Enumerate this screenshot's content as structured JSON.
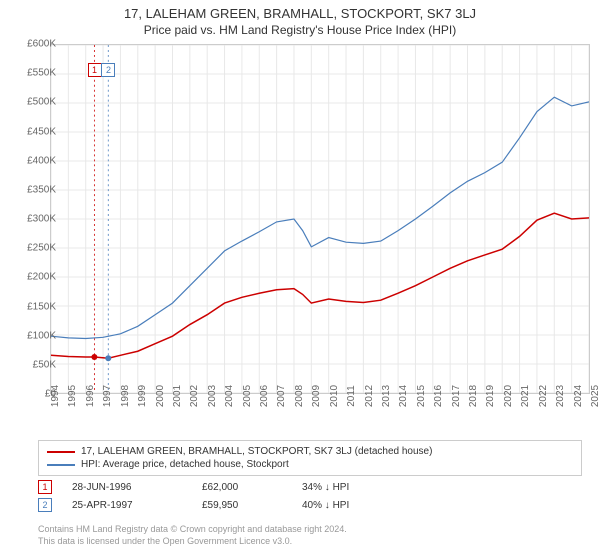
{
  "title": "17, LALEHAM GREEN, BRAMHALL, STOCKPORT, SK7 3LJ",
  "subtitle": "Price paid vs. HM Land Registry's House Price Index (HPI)",
  "chart": {
    "type": "line",
    "background_color": "#ffffff",
    "grid_color": "#e8e8e8",
    "border_color": "#cccccc",
    "x_start": 1994,
    "x_end": 2025,
    "x_ticks": [
      1994,
      1995,
      1996,
      1997,
      1998,
      1999,
      2000,
      2001,
      2002,
      2003,
      2004,
      2005,
      2006,
      2007,
      2008,
      2009,
      2010,
      2011,
      2012,
      2013,
      2014,
      2015,
      2016,
      2017,
      2018,
      2019,
      2020,
      2021,
      2022,
      2023,
      2024,
      2025
    ],
    "y_min": 0,
    "y_max": 600000,
    "y_tick_step": 50000,
    "y_tick_labels": [
      "£0",
      "£50K",
      "£100K",
      "£150K",
      "£200K",
      "£250K",
      "£300K",
      "£350K",
      "£400K",
      "£450K",
      "£500K",
      "£550K",
      "£600K"
    ],
    "y_label_color": "#666666",
    "x_label_color": "#666666",
    "label_fontsize": 10,
    "series": [
      {
        "name": "17, LALEHAM GREEN, BRAMHALL, STOCKPORT, SK7 3LJ (detached house)",
        "color": "#cc0000",
        "line_width": 1.5,
        "data": [
          [
            1994,
            65000
          ],
          [
            1995,
            63000
          ],
          [
            1996,
            62000
          ],
          [
            1996.5,
            62000
          ],
          [
            1997.3,
            59950
          ],
          [
            1998,
            65000
          ],
          [
            1999,
            72000
          ],
          [
            2000,
            85000
          ],
          [
            2001,
            98000
          ],
          [
            2002,
            118000
          ],
          [
            2003,
            135000
          ],
          [
            2004,
            155000
          ],
          [
            2005,
            165000
          ],
          [
            2006,
            172000
          ],
          [
            2007,
            178000
          ],
          [
            2008,
            180000
          ],
          [
            2008.5,
            170000
          ],
          [
            2009,
            155000
          ],
          [
            2010,
            162000
          ],
          [
            2011,
            158000
          ],
          [
            2012,
            156000
          ],
          [
            2013,
            160000
          ],
          [
            2014,
            172000
          ],
          [
            2015,
            185000
          ],
          [
            2016,
            200000
          ],
          [
            2017,
            215000
          ],
          [
            2018,
            228000
          ],
          [
            2019,
            238000
          ],
          [
            2020,
            248000
          ],
          [
            2021,
            270000
          ],
          [
            2022,
            298000
          ],
          [
            2023,
            310000
          ],
          [
            2024,
            300000
          ],
          [
            2025,
            302000
          ]
        ]
      },
      {
        "name": "HPI: Average price, detached house, Stockport",
        "color": "#4a7ebb",
        "line_width": 1.2,
        "data": [
          [
            1994,
            98000
          ],
          [
            1995,
            95000
          ],
          [
            1996,
            94000
          ],
          [
            1997,
            96000
          ],
          [
            1998,
            102000
          ],
          [
            1999,
            115000
          ],
          [
            2000,
            135000
          ],
          [
            2001,
            155000
          ],
          [
            2002,
            185000
          ],
          [
            2003,
            215000
          ],
          [
            2004,
            245000
          ],
          [
            2005,
            262000
          ],
          [
            2006,
            278000
          ],
          [
            2007,
            295000
          ],
          [
            2008,
            300000
          ],
          [
            2008.5,
            280000
          ],
          [
            2009,
            252000
          ],
          [
            2010,
            268000
          ],
          [
            2011,
            260000
          ],
          [
            2012,
            258000
          ],
          [
            2013,
            262000
          ],
          [
            2014,
            280000
          ],
          [
            2015,
            300000
          ],
          [
            2016,
            322000
          ],
          [
            2017,
            345000
          ],
          [
            2018,
            365000
          ],
          [
            2019,
            380000
          ],
          [
            2020,
            398000
          ],
          [
            2021,
            440000
          ],
          [
            2022,
            485000
          ],
          [
            2023,
            510000
          ],
          [
            2024,
            495000
          ],
          [
            2025,
            502000
          ]
        ]
      }
    ],
    "sale_markers": [
      {
        "label": "1",
        "x": 1996.5,
        "price": 62000,
        "color": "#cc0000",
        "dash_color": "#cc0000"
      },
      {
        "label": "2",
        "x": 1997.3,
        "price": 59950,
        "color": "#4a7ebb",
        "dash_color": "#4a7ebb"
      }
    ],
    "marker_box_top_offset": 18
  },
  "legend": {
    "items": [
      {
        "color": "#cc0000",
        "label": "17, LALEHAM GREEN, BRAMHALL, STOCKPORT, SK7 3LJ (detached house)"
      },
      {
        "color": "#4a7ebb",
        "label": "HPI: Average price, detached house, Stockport"
      }
    ]
  },
  "sales": [
    {
      "num": "1",
      "color": "#cc0000",
      "date": "28-JUN-1996",
      "price": "£62,000",
      "diff": "34% ↓ HPI"
    },
    {
      "num": "2",
      "color": "#4a7ebb",
      "date": "25-APR-1997",
      "price": "£59,950",
      "diff": "40% ↓ HPI"
    }
  ],
  "footer": {
    "line1": "Contains HM Land Registry data © Crown copyright and database right 2024.",
    "line2": "This data is licensed under the Open Government Licence v3.0."
  }
}
